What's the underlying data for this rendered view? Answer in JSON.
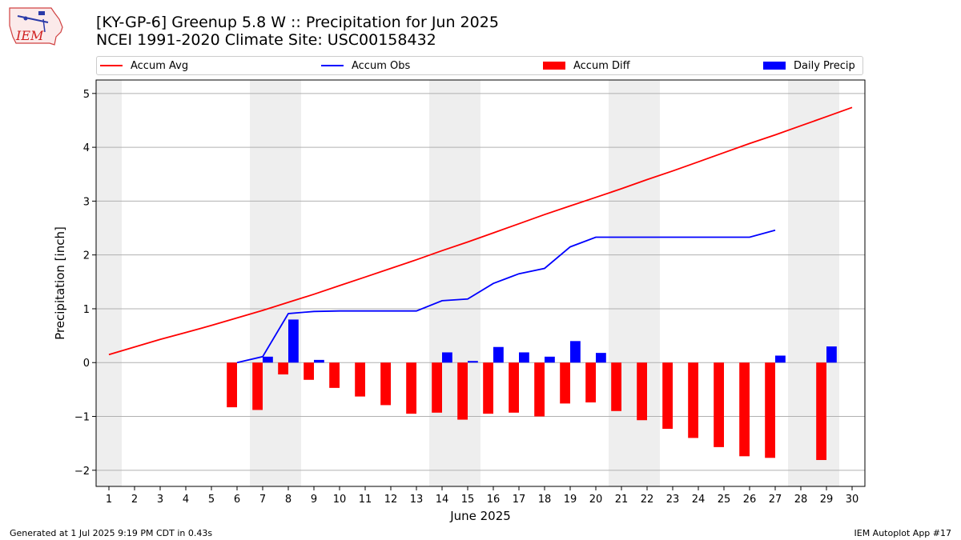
{
  "header": {
    "title_line1": "[KY-GP-6] Greenup 5.8 W :: Precipitation for Jun 2025",
    "title_line2": "NCEI 1991-2020 Climate Site: USC00158432",
    "logo_text": "IEM"
  },
  "footer": {
    "generated": "Generated at 1 Jul 2025 9:19 PM CDT in 0.43s",
    "app": "IEM Autoplot App #17"
  },
  "colors": {
    "accum_avg": "#ff0000",
    "accum_obs": "#0000ff",
    "accum_diff": "#ff0000",
    "daily_precip": "#0000ff",
    "weekend_shade": "#eeeeee",
    "grid": "#b0b0b0"
  },
  "chart_data": {
    "type": "bar",
    "xlabel": "June 2025",
    "ylabel": "Precipitation [inch]",
    "xlim": [
      0.5,
      30.5
    ],
    "ylim": [
      -2.3,
      5.25
    ],
    "yticks": [
      -2,
      -1,
      0,
      1,
      2,
      3,
      4,
      5
    ],
    "ytick_labels": [
      "−2",
      "−1",
      "0",
      "1",
      "2",
      "3",
      "4",
      "5"
    ],
    "days": [
      1,
      2,
      3,
      4,
      5,
      6,
      7,
      8,
      9,
      10,
      11,
      12,
      13,
      14,
      15,
      16,
      17,
      18,
      19,
      20,
      21,
      22,
      23,
      24,
      25,
      26,
      27,
      28,
      29,
      30
    ],
    "weekend_spans": [
      [
        0.5,
        1.5
      ],
      [
        6.5,
        8.5
      ],
      [
        13.5,
        15.5
      ],
      [
        20.5,
        22.5
      ],
      [
        27.5,
        29.5
      ]
    ],
    "grid": "y",
    "legend_placement": "top",
    "legend": [
      {
        "key": "accum_avg",
        "label": "Accum Avg",
        "kind": "line"
      },
      {
        "key": "accum_obs",
        "label": "Accum Obs",
        "kind": "line"
      },
      {
        "key": "accum_diff",
        "label": "Accum Diff",
        "kind": "bar"
      },
      {
        "key": "daily_precip",
        "label": "Daily Precip",
        "kind": "bar"
      }
    ],
    "series": [
      {
        "name": "Accum Avg",
        "kind": "line",
        "x": [
          1,
          2,
          3,
          4,
          5,
          6,
          7,
          8,
          9,
          10,
          11,
          12,
          13,
          14,
          15,
          16,
          17,
          18,
          19,
          20,
          21,
          22,
          23,
          24,
          25,
          26,
          27,
          28,
          29,
          30
        ],
        "values": [
          0.15,
          0.29,
          0.43,
          0.56,
          0.69,
          0.83,
          0.97,
          1.12,
          1.27,
          1.43,
          1.59,
          1.75,
          1.91,
          2.08,
          2.24,
          2.41,
          2.58,
          2.75,
          2.91,
          3.07,
          3.23,
          3.4,
          3.56,
          3.73,
          3.9,
          4.07,
          4.23,
          4.4,
          4.57,
          4.74
        ]
      },
      {
        "name": "Accum Obs",
        "kind": "line",
        "x": [
          6,
          7,
          8,
          9,
          10,
          11,
          12,
          13,
          14,
          15,
          16,
          17,
          18,
          19,
          20,
          21,
          22,
          23,
          24,
          25,
          26,
          27
        ],
        "values": [
          0.0,
          0.11,
          0.91,
          0.95,
          0.96,
          0.96,
          0.96,
          0.96,
          1.15,
          1.18,
          1.47,
          1.65,
          1.75,
          2.15,
          2.33,
          2.33,
          2.33,
          2.33,
          2.33,
          2.33,
          2.33,
          2.46
        ]
      },
      {
        "name": "Accum Diff",
        "kind": "bar",
        "x": [
          6,
          7,
          8,
          9,
          10,
          11,
          12,
          13,
          14,
          15,
          16,
          17,
          18,
          19,
          20,
          21,
          22,
          23,
          24,
          25,
          26,
          27,
          29
        ],
        "values": [
          -0.83,
          -0.88,
          -0.22,
          -0.32,
          -0.47,
          -0.63,
          -0.79,
          -0.95,
          -0.93,
          -1.06,
          -0.95,
          -0.93,
          -1.0,
          -0.76,
          -0.74,
          -0.9,
          -1.07,
          -1.23,
          -1.4,
          -1.57,
          -1.74,
          -1.77,
          -1.81
        ]
      },
      {
        "name": "Daily Precip",
        "kind": "bar",
        "x": [
          7,
          8,
          9,
          14,
          15,
          16,
          17,
          18,
          19,
          20,
          27,
          29
        ],
        "values": [
          0.11,
          0.8,
          0.05,
          0.19,
          0.03,
          0.29,
          0.19,
          0.11,
          0.4,
          0.18,
          0.13,
          0.3
        ]
      }
    ]
  }
}
